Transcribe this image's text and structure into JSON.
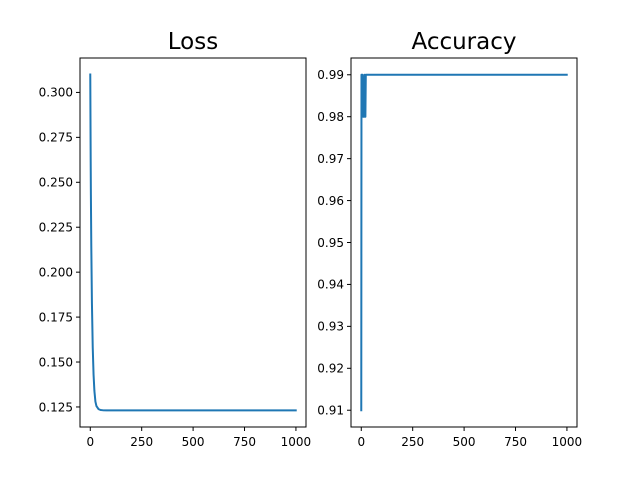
{
  "chart_data": [
    {
      "type": "line",
      "title": "Loss",
      "xlabel": "",
      "ylabel": "",
      "xlim": [
        -49.95,
        1048.95
      ],
      "ylim": [
        0.11385,
        0.31915
      ],
      "x_ticks": [
        0,
        250,
        500,
        750,
        1000
      ],
      "x_tick_labels": [
        "0",
        "250",
        "500",
        "750",
        "1000"
      ],
      "y_ticks": [
        0.125,
        0.15,
        0.175,
        0.2,
        0.225,
        0.25,
        0.275,
        0.3
      ],
      "y_tick_labels": [
        "0.125",
        "0.150",
        "0.175",
        "0.200",
        "0.225",
        "0.250",
        "0.275",
        "0.300"
      ],
      "grid": false,
      "series_color": "#1f77b4",
      "x": [
        0,
        1,
        2,
        3,
        5,
        8,
        12,
        16,
        20,
        25,
        30,
        40,
        50,
        60,
        80,
        100,
        200,
        400,
        600,
        800,
        999
      ],
      "values": [
        0.31,
        0.285,
        0.262,
        0.243,
        0.214,
        0.183,
        0.158,
        0.143,
        0.134,
        0.128,
        0.1255,
        0.1238,
        0.1233,
        0.1232,
        0.1231,
        0.1231,
        0.1231,
        0.1231,
        0.1231,
        0.1231,
        0.1231
      ]
    },
    {
      "type": "line",
      "title": "Accuracy",
      "xlabel": "",
      "ylabel": "",
      "xlim": [
        -49.95,
        1048.95
      ],
      "ylim": [
        0.906,
        0.994
      ],
      "x_ticks": [
        0,
        250,
        500,
        750,
        1000
      ],
      "x_tick_labels": [
        "0",
        "250",
        "500",
        "750",
        "1000"
      ],
      "y_ticks": [
        0.91,
        0.92,
        0.93,
        0.94,
        0.95,
        0.96,
        0.97,
        0.98,
        0.99
      ],
      "y_tick_labels": [
        "0.91",
        "0.92",
        "0.93",
        "0.94",
        "0.95",
        "0.96",
        "0.97",
        "0.98",
        "0.99"
      ],
      "grid": false,
      "series_color": "#1f77b4",
      "x": [
        0,
        1,
        6,
        8,
        10,
        14,
        16,
        18,
        20,
        22,
        999
      ],
      "values": [
        0.91,
        0.99,
        0.99,
        0.98,
        0.98,
        0.98,
        0.99,
        0.98,
        0.98,
        0.99,
        0.99
      ]
    }
  ]
}
